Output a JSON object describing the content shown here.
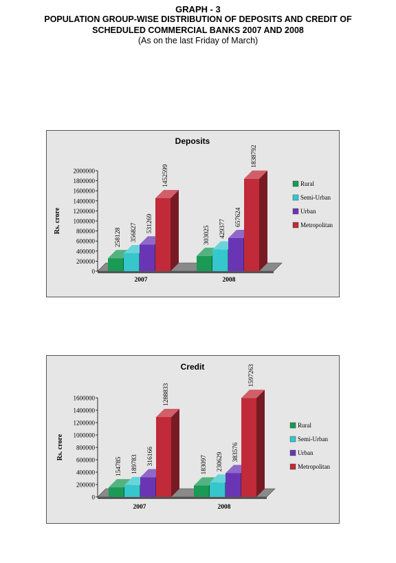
{
  "header": {
    "graph_no": "GRAPH - 3",
    "title_line1": "POPULATION GROUP-WISE DISTRIBUTION OF DEPOSITS AND CREDIT OF",
    "title_line2": "SCHEDULED COMMERCIAL BANKS 2007 AND 2008",
    "subtitle": "(As on the last Friday of March)"
  },
  "chart_data": [
    {
      "type": "bar",
      "title": "Deposits",
      "ylabel": "Rs. crore",
      "xlabel": "",
      "categories": [
        "2007",
        "2008"
      ],
      "ylim": [
        0,
        2000000
      ],
      "yticks": [
        "0",
        "200000",
        "400000",
        "600000",
        "800000",
        "1000000",
        "1200000",
        "1400000",
        "1600000",
        "1800000",
        "2000000"
      ],
      "series": [
        {
          "name": "Rural",
          "values": [
            258128,
            303025
          ],
          "labels": [
            "258128",
            "303025"
          ],
          "color": "#1a9a55"
        },
        {
          "name": "Semi-Urban",
          "values": [
            356827,
            429377
          ],
          "labels": [
            "356827",
            "429377"
          ],
          "color": "#35c7cc"
        },
        {
          "name": "Urban",
          "values": [
            531269,
            657624
          ],
          "labels": [
            "531269",
            "657624"
          ],
          "color": "#6a35b5"
        },
        {
          "name": "Metropolitan",
          "values": [
            1452599,
            1838792
          ],
          "labels": [
            "1452599",
            "1838792"
          ],
          "color": "#c12a38"
        }
      ],
      "legend_position": "right",
      "grid": false
    },
    {
      "type": "bar",
      "title": "Credit",
      "ylabel": "Rs. crore",
      "xlabel": "",
      "categories": [
        "2007",
        "2008"
      ],
      "ylim": [
        0,
        1600000
      ],
      "yticks": [
        "0",
        "200000",
        "400000",
        "600000",
        "800000",
        "1000000",
        "1200000",
        "1400000",
        "1600000"
      ],
      "series": [
        {
          "name": "Rural",
          "values": [
            154785,
            183097
          ],
          "labels": [
            "154785",
            "183097"
          ],
          "color": "#1a9a55"
        },
        {
          "name": "Semi-Urban",
          "values": [
            189783,
            230629
          ],
          "labels": [
            "189783",
            "230629"
          ],
          "color": "#35c7cc"
        },
        {
          "name": "Urban",
          "values": [
            316166,
            383576
          ],
          "labels": [
            "316166",
            "383576"
          ],
          "color": "#6a35b5"
        },
        {
          "name": "Metropolitan",
          "values": [
            1288833,
            1597263
          ],
          "labels": [
            "1288833",
            "1597263"
          ],
          "color": "#c12a38"
        }
      ],
      "legend_position": "right",
      "grid": false
    }
  ]
}
